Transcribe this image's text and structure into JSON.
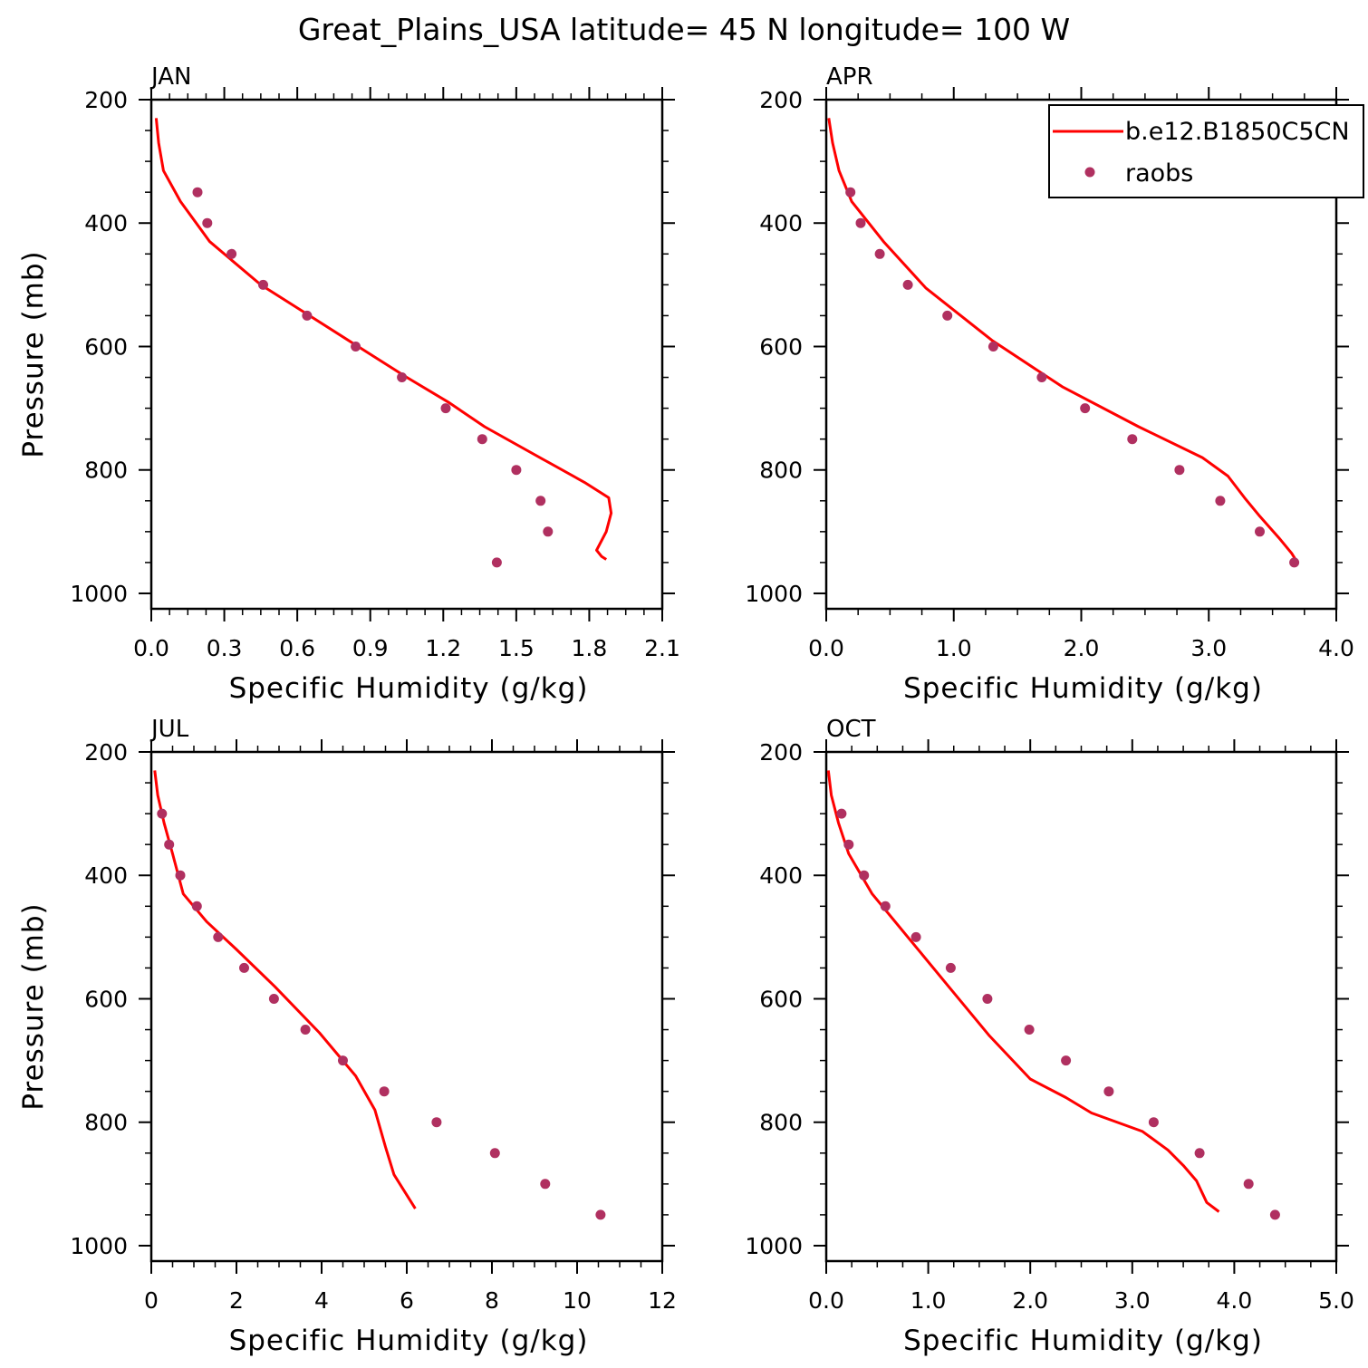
{
  "title": "Great_Plains_USA  latitude= 45 N longitude= 100 W",
  "colors": {
    "model": "#ff0000",
    "raobs": "#b03060",
    "axes": "#000000"
  },
  "legend": {
    "placement": "top-right of APR panel",
    "entries": [
      {
        "label": "b.e12.B1850C5CN",
        "style": "line",
        "color": "#ff0000"
      },
      {
        "label": "raobs",
        "style": "marker",
        "color": "#b03060"
      }
    ]
  },
  "chart_data": [
    {
      "type": "line",
      "panel_label": "JAN",
      "xlabel": "Specific Humidity (g/kg)",
      "ylabel": "Pressure (mb)",
      "xlim": [
        0,
        2.1
      ],
      "ylim": [
        1025,
        200
      ],
      "y_inverted": true,
      "xticks": [
        "0.0",
        "0.3",
        "0.6",
        "0.9",
        "1.2",
        "1.5",
        "1.8",
        "2.1"
      ],
      "xtick_values": [
        0,
        0.3,
        0.6,
        0.9,
        1.2,
        1.5,
        1.8,
        2.1
      ],
      "yticks": [
        "200",
        "400",
        "600",
        "800",
        "1000"
      ],
      "ytick_values": [
        200,
        400,
        600,
        800,
        1000
      ],
      "series": [
        {
          "name": "b.e12.B1850C5CN",
          "kind": "line",
          "x": [
            0.02,
            0.03,
            0.05,
            0.12,
            0.24,
            0.45,
            0.65,
            0.85,
            1.05,
            1.22,
            1.37,
            1.62,
            1.78,
            1.88,
            1.89,
            1.87,
            1.83,
            1.85,
            1.87
          ],
          "y": [
            230,
            270,
            315,
            365,
            430,
            500,
            550,
            600,
            650,
            690,
            730,
            785,
            820,
            845,
            870,
            900,
            930,
            940,
            945
          ]
        },
        {
          "name": "raobs",
          "kind": "scatter",
          "x": [
            0.19,
            0.23,
            0.33,
            0.46,
            0.64,
            0.84,
            1.03,
            1.21,
            1.36,
            1.5,
            1.6,
            1.63,
            1.42
          ],
          "y": [
            350,
            400,
            450,
            500,
            550,
            600,
            650,
            700,
            750,
            800,
            850,
            900,
            950
          ]
        }
      ]
    },
    {
      "type": "line",
      "panel_label": "APR",
      "xlabel": "Specific Humidity (g/kg)",
      "ylabel": "",
      "xlim": [
        0,
        4
      ],
      "ylim": [
        1025,
        200
      ],
      "y_inverted": true,
      "xticks": [
        "0.0",
        "1.0",
        "2.0",
        "3.0",
        "4.0"
      ],
      "xtick_values": [
        0,
        1,
        2,
        3,
        4
      ],
      "yticks": [
        "200",
        "400",
        "600",
        "800",
        "1000"
      ],
      "ytick_values": [
        200,
        400,
        600,
        800,
        1000
      ],
      "series": [
        {
          "name": "b.e12.B1850C5CN",
          "kind": "line",
          "x": [
            0.02,
            0.05,
            0.1,
            0.2,
            0.45,
            0.78,
            1.3,
            1.85,
            2.45,
            2.95,
            3.15,
            3.28,
            3.4,
            3.55,
            3.65,
            3.68
          ],
          "y": [
            230,
            270,
            315,
            365,
            430,
            505,
            590,
            665,
            730,
            780,
            810,
            845,
            875,
            910,
            935,
            945
          ]
        },
        {
          "name": "raobs",
          "kind": "scatter",
          "x": [
            0.19,
            0.27,
            0.42,
            0.64,
            0.95,
            1.31,
            1.69,
            2.03,
            2.4,
            2.77,
            3.09,
            3.4,
            3.67
          ],
          "y": [
            350,
            400,
            450,
            500,
            550,
            600,
            650,
            700,
            750,
            800,
            850,
            900,
            950
          ]
        }
      ]
    },
    {
      "type": "line",
      "panel_label": "JUL",
      "xlabel": "Specific Humidity (g/kg)",
      "ylabel": "Pressure (mb)",
      "xlim": [
        0,
        12
      ],
      "ylim": [
        1025,
        200
      ],
      "y_inverted": true,
      "xticks": [
        "0",
        "2",
        "4",
        "6",
        "8",
        "10",
        "12"
      ],
      "xtick_values": [
        0,
        2,
        4,
        6,
        8,
        10,
        12
      ],
      "yticks": [
        "200",
        "400",
        "600",
        "800",
        "1000"
      ],
      "ytick_values": [
        200,
        400,
        600,
        800,
        1000
      ],
      "series": [
        {
          "name": "b.e12.B1850C5CN",
          "kind": "line",
          "x": [
            0.08,
            0.15,
            0.3,
            0.5,
            0.75,
            1.3,
            2.0,
            2.9,
            3.95,
            4.8,
            5.25,
            5.5,
            5.7,
            6.2
          ],
          "y": [
            230,
            270,
            315,
            365,
            430,
            475,
            520,
            580,
            655,
            725,
            780,
            840,
            885,
            940
          ]
        },
        {
          "name": "raobs",
          "kind": "scatter",
          "x": [
            0.25,
            0.42,
            0.68,
            1.07,
            1.57,
            2.18,
            2.88,
            3.62,
            4.5,
            5.47,
            6.7,
            8.07,
            9.25,
            10.55
          ],
          "y": [
            300,
            350,
            400,
            450,
            500,
            550,
            600,
            650,
            700,
            750,
            800,
            850,
            900,
            950
          ]
        }
      ]
    },
    {
      "type": "line",
      "panel_label": "OCT",
      "xlabel": "Specific Humidity (g/kg)",
      "ylabel": "",
      "xlim": [
        0,
        5
      ],
      "ylim": [
        1025,
        200
      ],
      "y_inverted": true,
      "xticks": [
        "0.0",
        "1.0",
        "2.0",
        "3.0",
        "4.0",
        "5.0"
      ],
      "xtick_values": [
        0,
        1,
        2,
        3,
        4,
        5
      ],
      "yticks": [
        "200",
        "400",
        "600",
        "800",
        "1000"
      ],
      "ytick_values": [
        200,
        400,
        600,
        800,
        1000
      ],
      "series": [
        {
          "name": "b.e12.B1850C5CN",
          "kind": "line",
          "x": [
            0.02,
            0.05,
            0.12,
            0.22,
            0.45,
            0.8,
            1.2,
            1.6,
            2.0,
            2.35,
            2.6,
            3.1,
            3.35,
            3.5,
            3.63,
            3.73,
            3.85
          ],
          "y": [
            230,
            270,
            315,
            365,
            430,
            500,
            580,
            660,
            730,
            760,
            785,
            815,
            845,
            870,
            895,
            930,
            945
          ]
        },
        {
          "name": "raobs",
          "kind": "scatter",
          "x": [
            0.15,
            0.22,
            0.37,
            0.58,
            0.88,
            1.22,
            1.58,
            1.99,
            2.35,
            2.77,
            3.21,
            3.66,
            4.14,
            4.4
          ],
          "y": [
            300,
            350,
            400,
            450,
            500,
            550,
            600,
            650,
            700,
            750,
            800,
            850,
            900,
            950
          ]
        }
      ]
    }
  ]
}
